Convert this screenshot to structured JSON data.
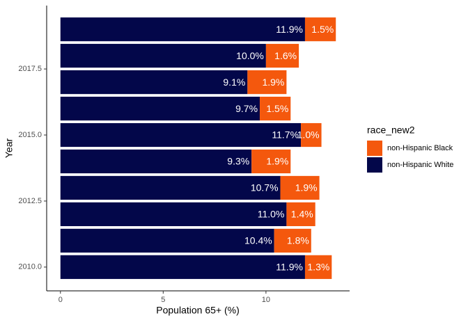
{
  "chart_data": {
    "type": "bar",
    "orientation": "horizontal",
    "stacked": true,
    "x_label": "Population 65+ (%)",
    "y_label": "Year",
    "legend_title": "race_new2",
    "legend": "right",
    "x": [
      2010,
      2011,
      2012,
      2013,
      2014,
      2015,
      2016,
      2017,
      2018,
      2019
    ],
    "series": [
      {
        "name": "non-Hispanic White",
        "color": "#03074a",
        "values": [
          11.9,
          10.4,
          11.0,
          10.7,
          9.3,
          11.7,
          9.7,
          9.1,
          10.0,
          11.9
        ],
        "value_labels": [
          "11.9%",
          "10.4%",
          "11.0%",
          "10.7%",
          "9.3%",
          "11.7%",
          "9.7%",
          "9.1%",
          "10.0%",
          "11.9%"
        ]
      },
      {
        "name": "non-Hispanic Black",
        "color": "#f4580d",
        "values": [
          1.3,
          1.8,
          1.4,
          1.9,
          1.9,
          1.0,
          1.5,
          1.9,
          1.6,
          1.5
        ],
        "value_labels": [
          "1.3%",
          "1.8%",
          "1.4%",
          "1.9%",
          "1.9%",
          "1.0%",
          "1.5%",
          "1.9%",
          "1.6%",
          "1.5%"
        ]
      }
    ],
    "xlim": [
      -0.67,
      14.07
    ],
    "xticks": [
      0,
      5,
      10
    ],
    "ylim": [
      2009.1,
      2019.9
    ],
    "yticks": [
      {
        "value": 2010,
        "label": "2010.0"
      },
      2012.5,
      {
        "value": 2015,
        "label": "2015.0"
      },
      2017.5
    ]
  }
}
